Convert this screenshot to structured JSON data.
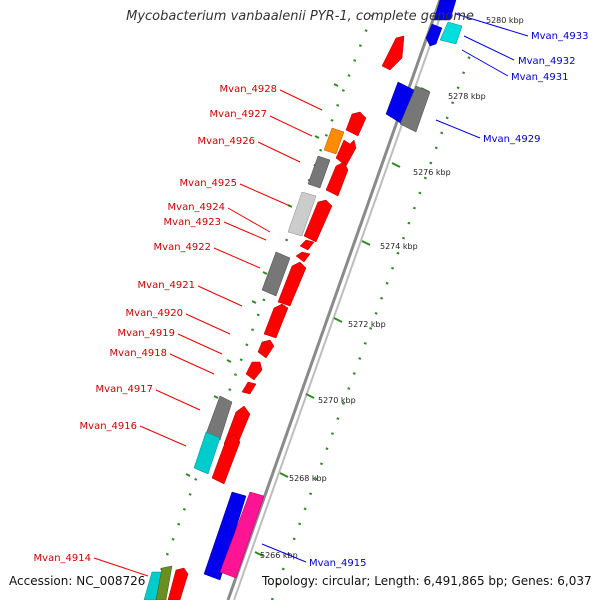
{
  "title": "Mycobacterium vanbaalenii PYR-1, complete genome",
  "accession": "Accession: NC_008726",
  "summary": "Topology: circular; Length: 6,491,865 bp; Genes: 6,037",
  "colors": {
    "left_label": "#cc0000",
    "right_label": "#0000cc",
    "backbone": "#888888",
    "tick": "#2e8b22"
  },
  "scale_ticks": [
    "5266 kbp",
    "5268 kbp",
    "5270 kbp",
    "5272 kbp",
    "5274 kbp",
    "5276 kbp",
    "5278 kbp",
    "5280 kbp"
  ],
  "left_labels": [
    "Mvan_4928",
    "Mvan_4927",
    "Mvan_4926",
    "Mvan_4925",
    "Mvan_4924",
    "Mvan_4923",
    "Mvan_4922",
    "Mvan_4921",
    "Mvan_4920",
    "Mvan_4919",
    "Mvan_4918",
    "Mvan_4917",
    "Mvan_4916",
    "Mvan_4914"
  ],
  "right_labels": [
    "Mvan_4933",
    "Mvan_4932",
    "Mvan_4931",
    "Mvan_4929",
    "Mvan_4915"
  ]
}
